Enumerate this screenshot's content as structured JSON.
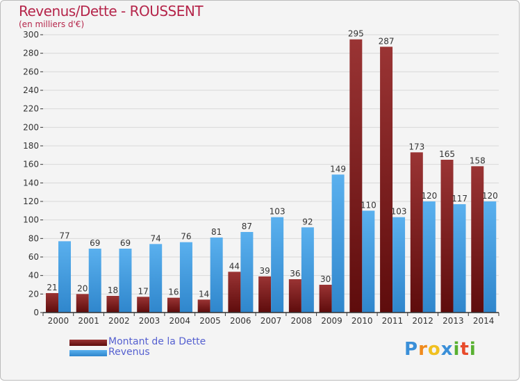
{
  "title": "Revenus/Dette - ROUSSENT",
  "subtitle": "(en milliers d'€)",
  "logo": {
    "text": "Proxiti",
    "letters": [
      "P",
      "r",
      "o",
      "x",
      "i",
      "t",
      "i"
    ],
    "colors": [
      "#3a8fd8",
      "#f08a1c",
      "#f0c020",
      "#3a8fd8",
      "#58b030",
      "#e84a2a",
      "#58b030"
    ]
  },
  "colors": {
    "dette": "#7a1c1c",
    "revenus": "#3d9ae0",
    "grid": "#d8d8d8",
    "axis": "#333333"
  },
  "legend": [
    {
      "name": "Montant de la Dette",
      "color": "#7a1c1c"
    },
    {
      "name": "Revenus",
      "color": "#3d9ae0"
    }
  ],
  "chart_data": {
    "type": "bar",
    "title": "Revenus/Dette - ROUSSENT",
    "ylabel": "(en milliers d'€)",
    "categories": [
      "2000",
      "2001",
      "2002",
      "2003",
      "2004",
      "2005",
      "2006",
      "2007",
      "2008",
      "2009",
      "2010",
      "2011",
      "2012",
      "2013",
      "2014"
    ],
    "series": [
      {
        "name": "Montant de la Dette",
        "color": "#7a1c1c",
        "values": [
          21,
          20,
          18,
          17,
          16,
          14,
          44,
          39,
          36,
          30,
          295,
          287,
          173,
          165,
          158
        ]
      },
      {
        "name": "Revenus",
        "color": "#3d9ae0",
        "values": [
          77,
          69,
          69,
          74,
          76,
          81,
          87,
          103,
          92,
          149,
          110,
          103,
          120,
          117,
          120
        ]
      }
    ],
    "ylim": [
      0,
      300
    ],
    "yticks": [
      0,
      20,
      40,
      60,
      80,
      100,
      120,
      140,
      160,
      180,
      200,
      220,
      240,
      260,
      280,
      300
    ],
    "grid": true,
    "legend_position": "bottom-left"
  }
}
